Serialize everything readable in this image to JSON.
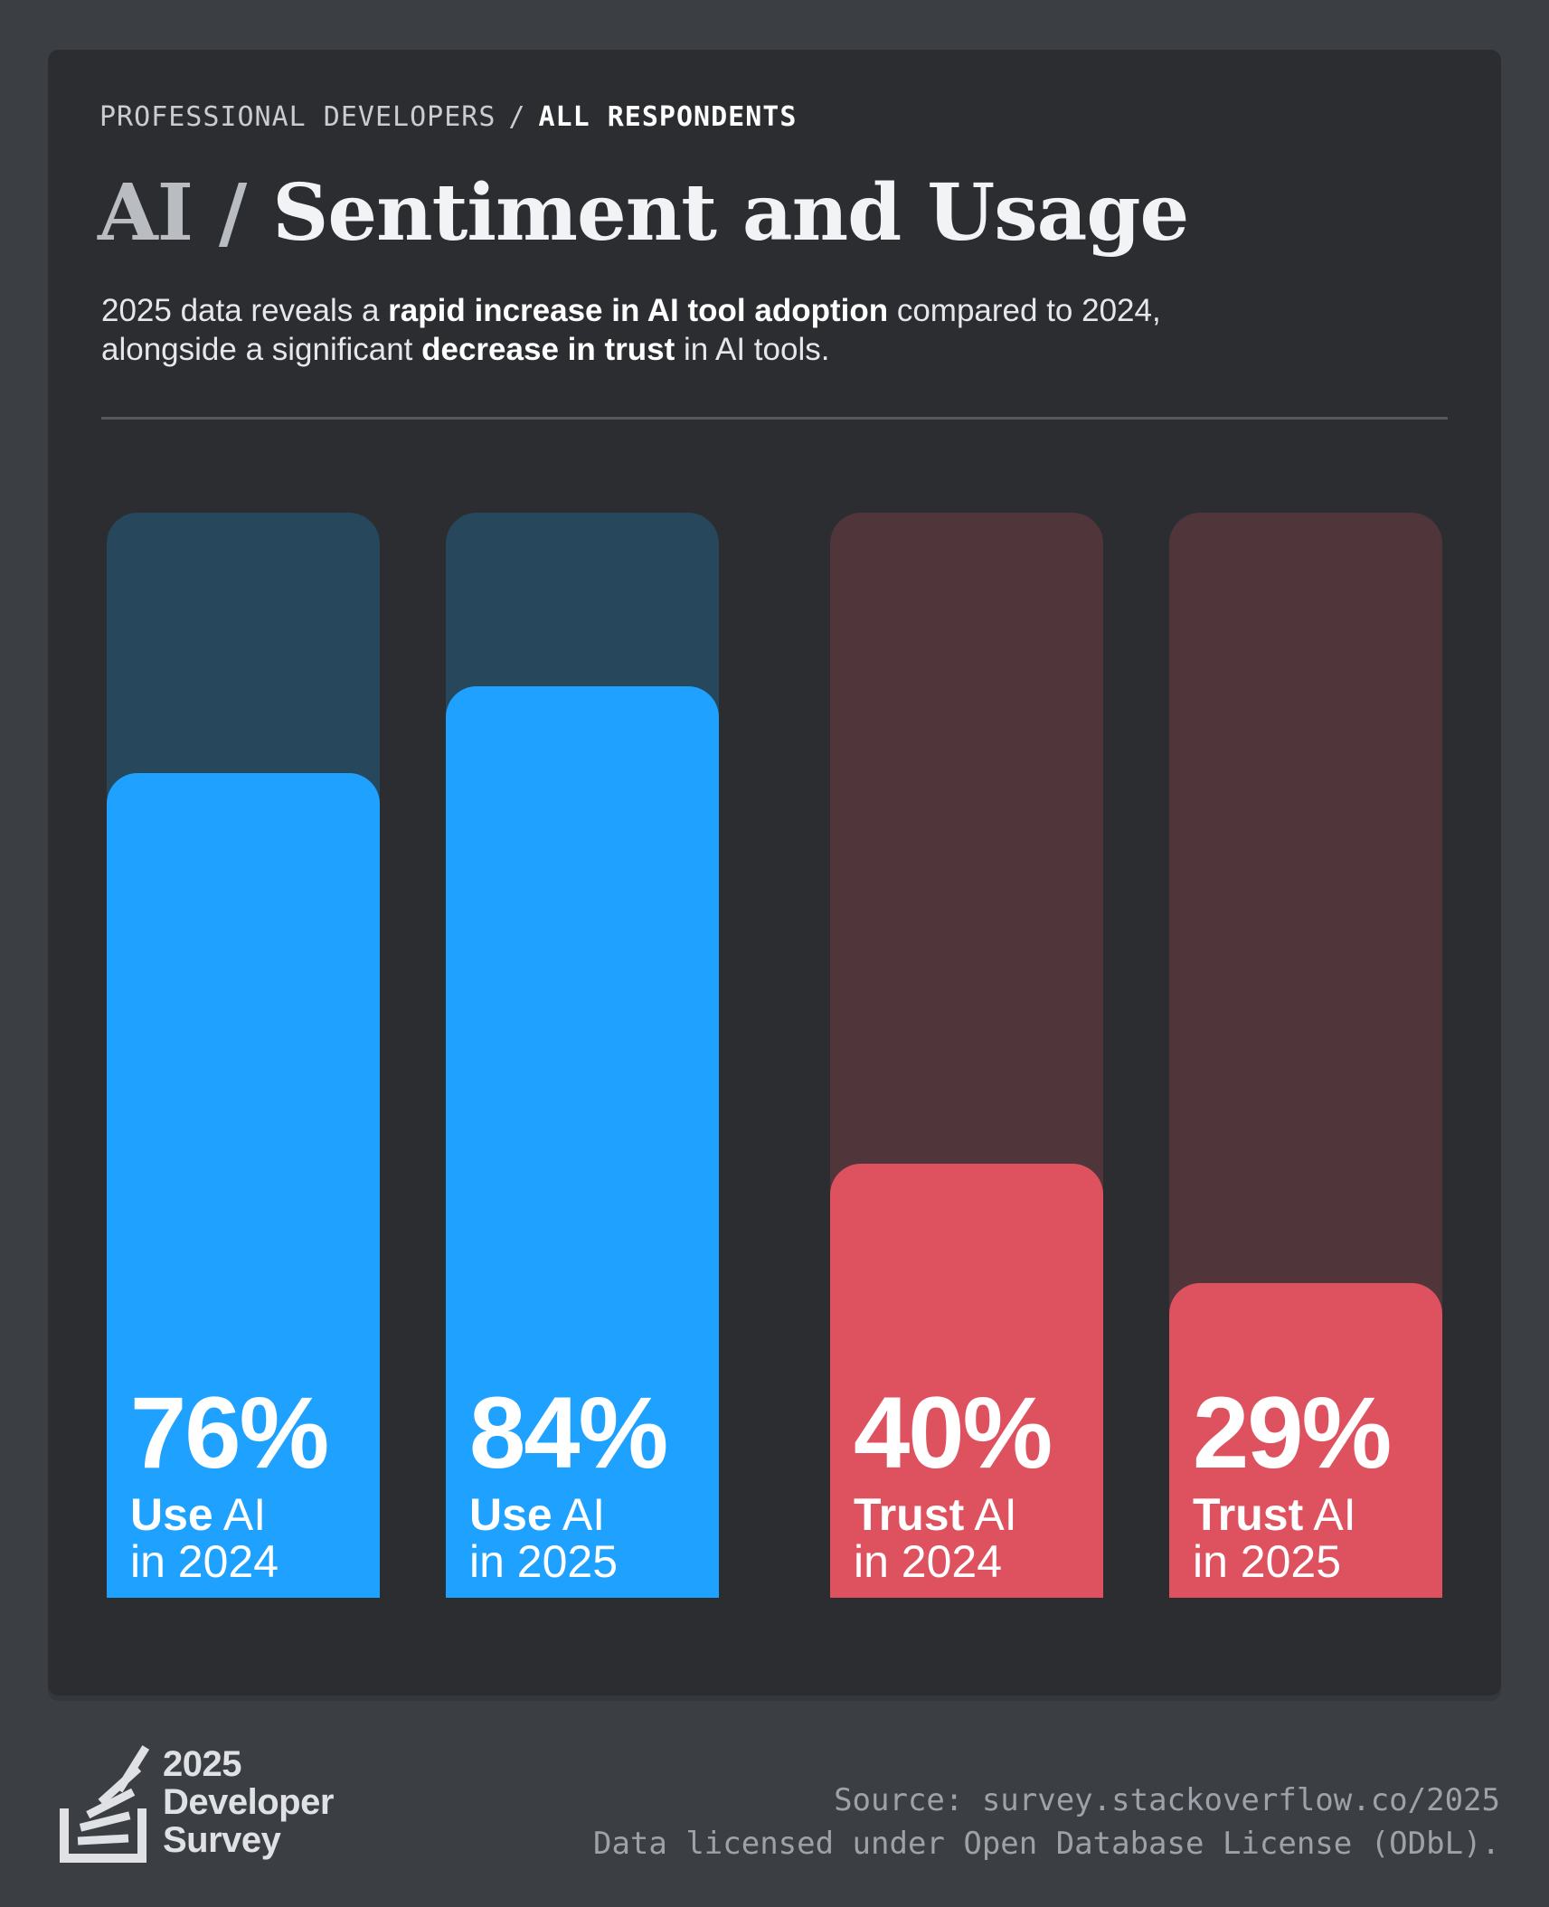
{
  "header": {
    "breadcrumb_first": "PROFESSIONAL DEVELOPERS",
    "breadcrumb_sep": "/",
    "breadcrumb_current": "ALL RESPONDENTS",
    "title_prefix": "AI /",
    "title_main": "Sentiment and Usage",
    "subtitle": {
      "line1_a": "2025 data reveals a ",
      "line1_b": "rapid increase in AI tool adoption",
      "line1_c": " compared to 2024,",
      "line2_a": "alongside a significant ",
      "line2_b": "decrease in trust",
      "line2_c": " in AI tools."
    }
  },
  "chart_data": {
    "type": "bar",
    "title": "AI / Sentiment and Usage",
    "ylim": [
      0,
      100
    ],
    "categories": [
      "Use AI in 2024",
      "Use AI in 2025",
      "Trust AI in 2024",
      "Trust AI in 2025"
    ],
    "values": [
      76,
      84,
      40,
      29
    ],
    "bars": [
      {
        "value": 76,
        "label": "76%",
        "strong": "Use",
        "rest": " AI",
        "year": "in 2024",
        "group": "use",
        "color": "#1ea1ff",
        "track_color": "#26475c"
      },
      {
        "value": 84,
        "label": "84%",
        "strong": "Use",
        "rest": " AI",
        "year": "in 2025",
        "group": "use",
        "color": "#1ea1ff",
        "track_color": "#26475c"
      },
      {
        "value": 40,
        "label": "40%",
        "strong": "Trust",
        "rest": " AI",
        "year": "in 2024",
        "group": "trust",
        "color": "#de525f",
        "track_color": "#50353b"
      },
      {
        "value": 29,
        "label": "29%",
        "strong": "Trust",
        "rest": " AI",
        "year": "in 2025",
        "group": "trust",
        "color": "#de525f",
        "track_color": "#50353b"
      }
    ]
  },
  "footer": {
    "logo_line1": "2025",
    "logo_line2": "Developer",
    "logo_line3": "Survey",
    "source": "Source: survey.stackoverflow.co/2025",
    "license": "Data licensed under Open Database License (ODbL)."
  }
}
